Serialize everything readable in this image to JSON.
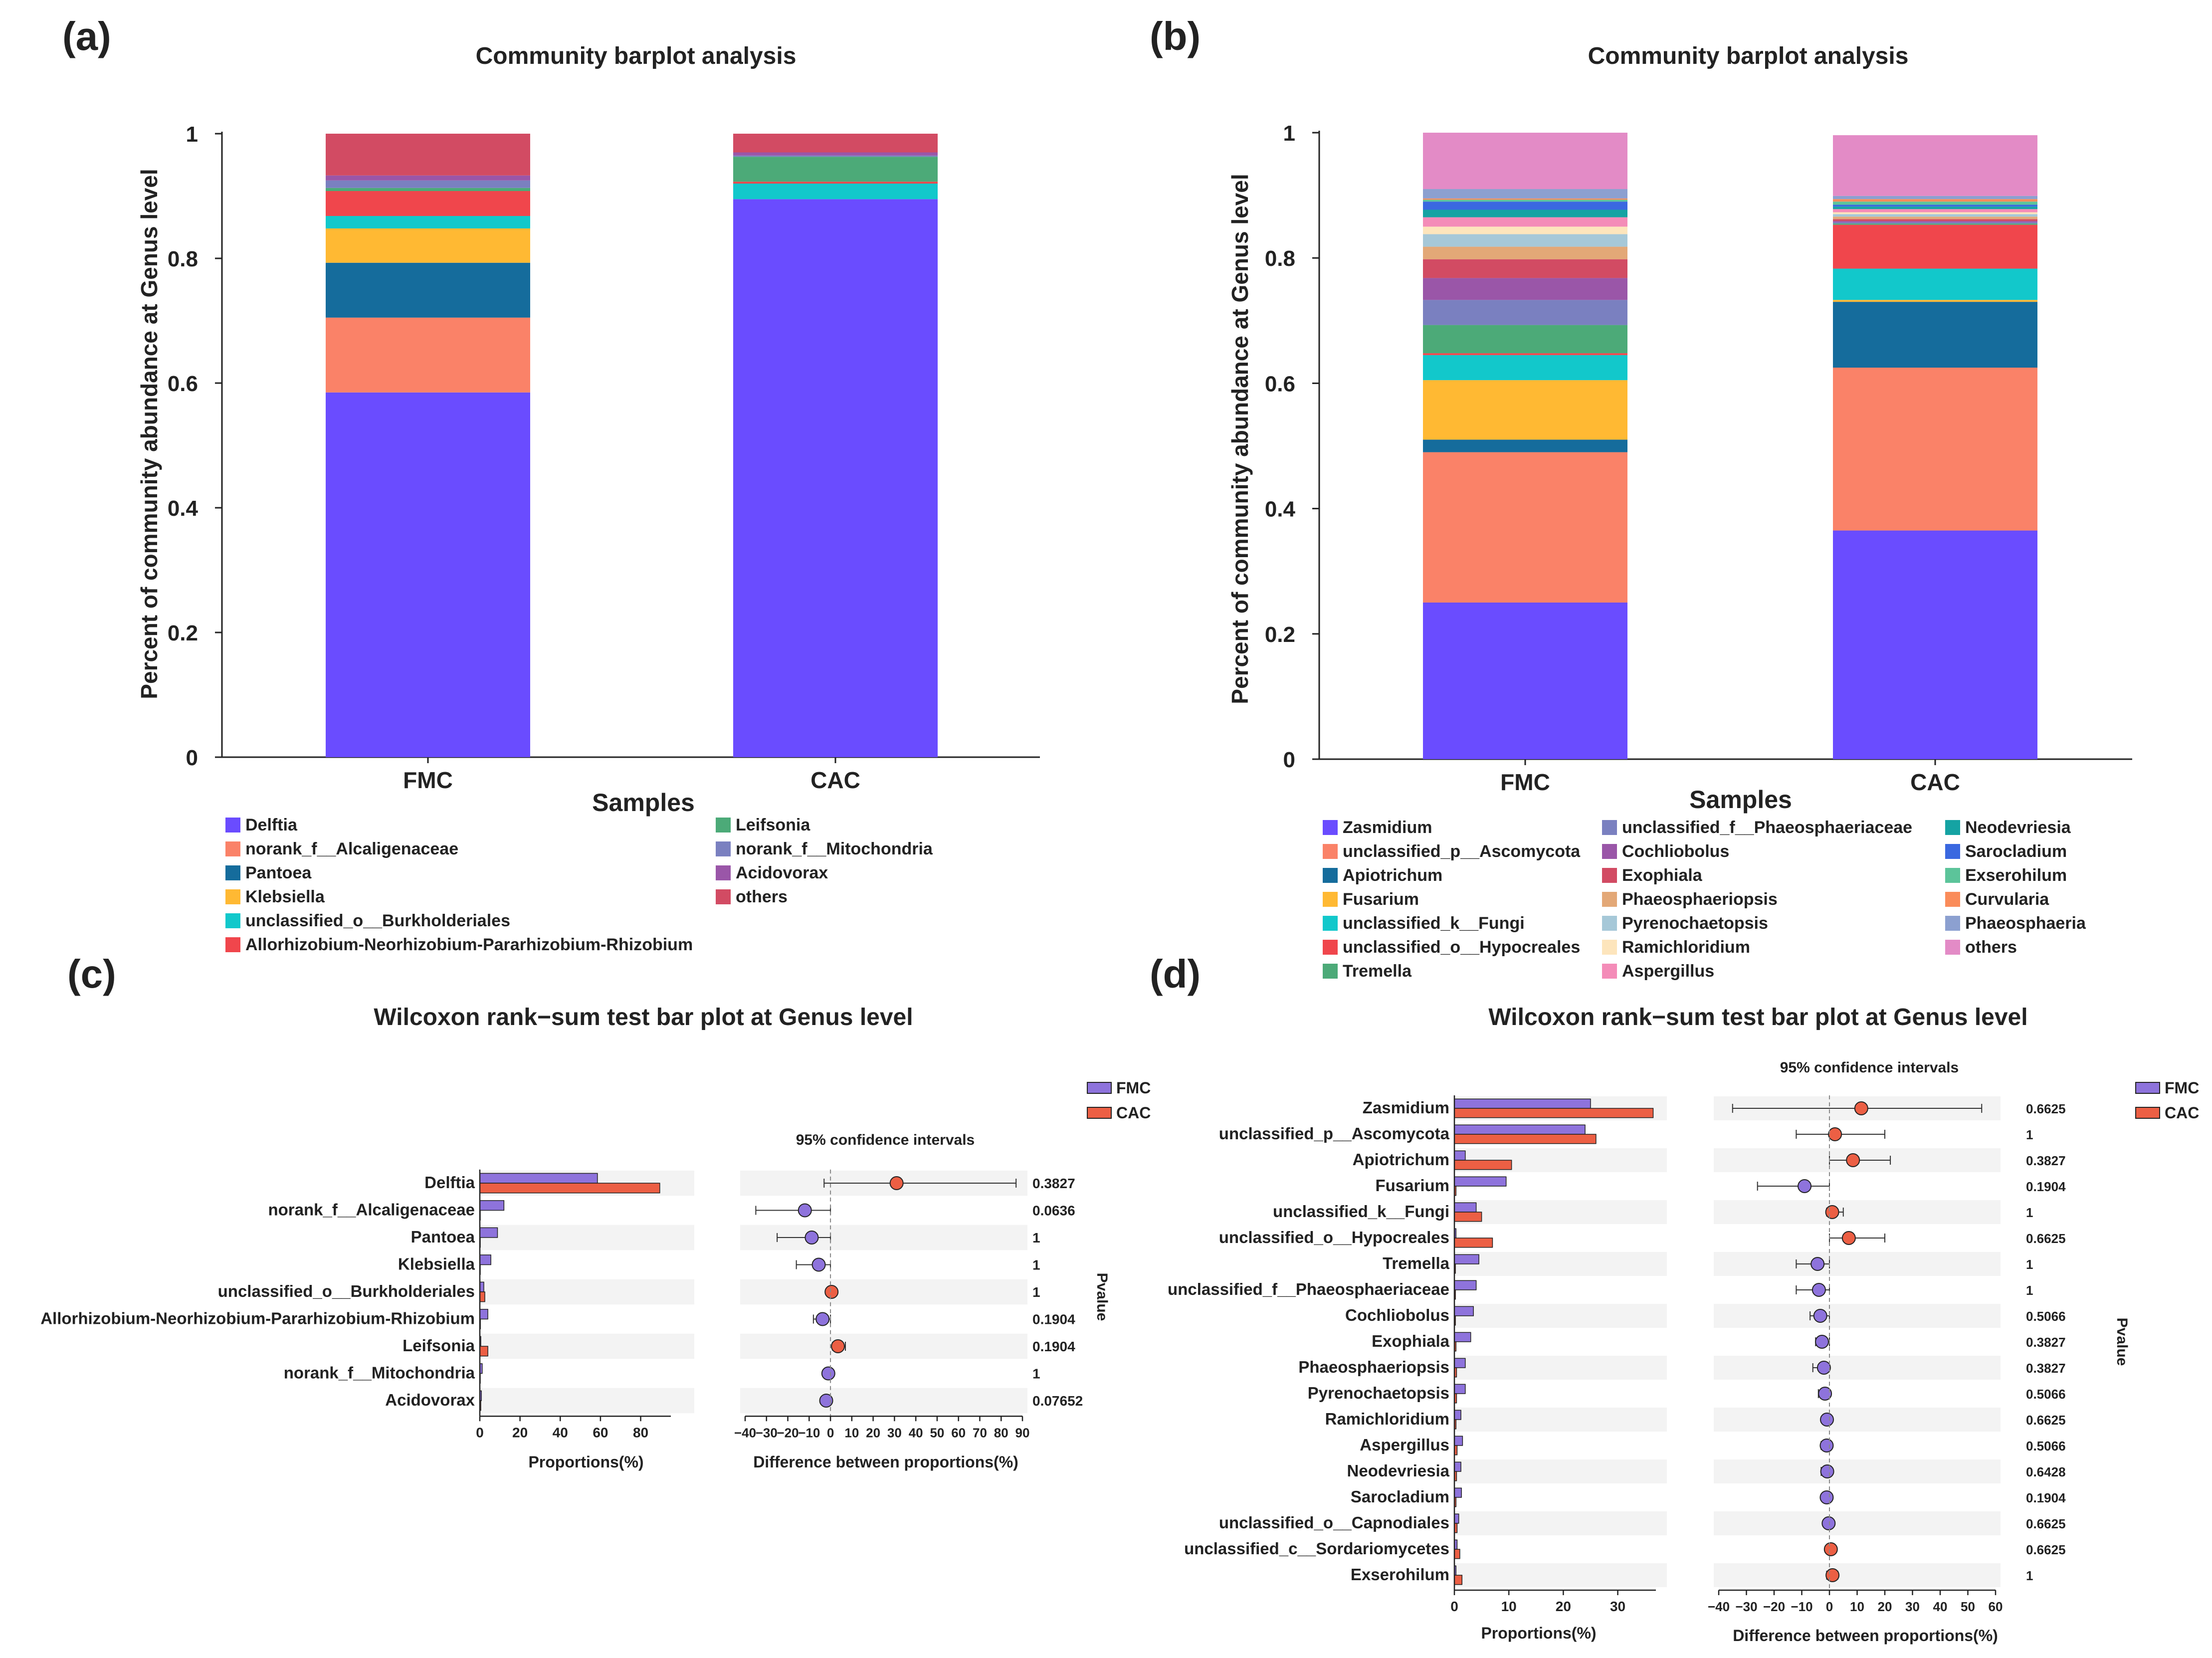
{
  "chart_data": [
    {
      "panel_label": "(a)",
      "type": "bar",
      "stacked": true,
      "title": "Community barplot analysis",
      "xlabel": "Samples",
      "ylabel": "Percent of community abundance at Genus level",
      "ylim": [
        0,
        1
      ],
      "yticks": [
        "0",
        "0.2",
        "0.4",
        "0.6",
        "0.8",
        "1"
      ],
      "categories": [
        "FMC",
        "CAC"
      ],
      "series": [
        {
          "name": "Delftia",
          "color": "#6a4cff",
          "values": [
            0.585,
            0.895
          ]
        },
        {
          "name": "norank_f__Alcaligenaceae",
          "color": "#fa8268",
          "values": [
            0.12,
            0.0
          ]
        },
        {
          "name": "Pantoea",
          "color": "#156c9c",
          "values": [
            0.088,
            0.0
          ]
        },
        {
          "name": "Klebsiella",
          "color": "#ffb933",
          "values": [
            0.055,
            0.0
          ]
        },
        {
          "name": "unclassified_o__Burkholderiales",
          "color": "#12c8cb",
          "values": [
            0.02,
            0.025
          ]
        },
        {
          "name": "Allorhizobium-Neorhizobium-Pararhizobium-Rhizobium",
          "color": "#f0464c",
          "values": [
            0.04,
            0.003
          ]
        },
        {
          "name": "Leifsonia",
          "color": "#4caa78",
          "values": [
            0.005,
            0.04
          ]
        },
        {
          "name": "norank_f__Mitochondria",
          "color": "#7a80c0",
          "values": [
            0.012,
            0.002
          ]
        },
        {
          "name": "Acidovorax",
          "color": "#9a56a8",
          "values": [
            0.008,
            0.005
          ]
        },
        {
          "name": "others",
          "color": "#d24b63",
          "values": [
            0.067,
            0.03
          ]
        }
      ]
    },
    {
      "panel_label": "(b)",
      "type": "bar",
      "stacked": true,
      "title": "Community barplot analysis",
      "xlabel": "Samples",
      "ylabel": "Percent of community abundance at Genus level",
      "ylim": [
        0,
        1
      ],
      "yticks": [
        "0",
        "0.2",
        "0.4",
        "0.6",
        "0.8",
        "1"
      ],
      "categories": [
        "FMC",
        "CAC"
      ],
      "series": [
        {
          "name": "Zasmidium",
          "color": "#6a4cff",
          "values": [
            0.25,
            0.365
          ]
        },
        {
          "name": "unclassified_p__Ascomycota",
          "color": "#fa8268",
          "values": [
            0.24,
            0.26
          ]
        },
        {
          "name": "Apiotrichum",
          "color": "#156c9c",
          "values": [
            0.02,
            0.105
          ]
        },
        {
          "name": "Fusarium",
          "color": "#ffb933",
          "values": [
            0.095,
            0.003
          ]
        },
        {
          "name": "unclassified_k__Fungi",
          "color": "#12c8cb",
          "values": [
            0.04,
            0.05
          ]
        },
        {
          "name": "unclassified_o__Hypocreales",
          "color": "#f0464c",
          "values": [
            0.003,
            0.07
          ]
        },
        {
          "name": "Tremella",
          "color": "#4caa78",
          "values": [
            0.045,
            0.002
          ]
        },
        {
          "name": "unclassified_f__Phaeosphaeriaceae",
          "color": "#7a80c0",
          "values": [
            0.04,
            0.002
          ]
        },
        {
          "name": "Cochliobolus",
          "color": "#9a56a8",
          "values": [
            0.035,
            0.002
          ]
        },
        {
          "name": "Exophiala",
          "color": "#d24b63",
          "values": [
            0.03,
            0.003
          ]
        },
        {
          "name": "Phaeosphaeriopsis",
          "color": "#e3a877",
          "values": [
            0.02,
            0.004
          ]
        },
        {
          "name": "Pyrenochaetopsis",
          "color": "#a6c8d8",
          "values": [
            0.02,
            0.004
          ]
        },
        {
          "name": "Ramichloridium",
          "color": "#fde5bc",
          "values": [
            0.012,
            0.003
          ]
        },
        {
          "name": "Aspergillus",
          "color": "#f48cb8",
          "values": [
            0.015,
            0.005
          ]
        },
        {
          "name": "Neodevriesia",
          "color": "#15a3a3",
          "values": [
            0.012,
            0.004
          ]
        },
        {
          "name": "Sarocladium",
          "color": "#3a68e0",
          "values": [
            0.013,
            0.003
          ]
        },
        {
          "name": "Exserohilum",
          "color": "#5cc49a",
          "values": [
            0.003,
            0.005
          ]
        },
        {
          "name": "Curvularia",
          "color": "#fa8c5a",
          "values": [
            0.002,
            0.004
          ]
        },
        {
          "name": "Phaeosphaeria",
          "color": "#8ca0d0",
          "values": [
            0.015,
            0.005
          ]
        },
        {
          "name": "others",
          "color": "#e38bc6",
          "values": [
            0.09,
            0.097
          ]
        }
      ]
    },
    {
      "panel_label": "(c)",
      "type": "bar",
      "title": "Wilcoxon rank−sum test bar plot at Genus level",
      "xlabel": "Proportions(%)",
      "ci_xlabel": "Difference between proportions(%)",
      "ci_title": "95% confidence intervals",
      "pvalue_label": "Pvalue",
      "xlim": [
        0,
        95
      ],
      "xticks": [
        "0",
        "20",
        "40",
        "60",
        "80"
      ],
      "ci_xlim": [
        -40,
        90
      ],
      "ci_xticks": [
        "−40",
        "−30",
        "−20",
        "−10",
        "0",
        "10",
        "20",
        "30",
        "40",
        "50",
        "60",
        "70",
        "80",
        "90"
      ],
      "legend": [
        {
          "name": "FMC",
          "color": "#8e73dc"
        },
        {
          "name": "CAC",
          "color": "#ec5f44"
        }
      ],
      "categories": [
        "Delftia",
        "norank_f__Alcaligenaceae",
        "Pantoea",
        "Klebsiella",
        "unclassified_o__Burkholderiales",
        "Allorhizobium-Neorhizobium-Pararhizobium-Rhizobium",
        "Leifsonia",
        "norank_f__Mitochondria",
        "Acidovorax"
      ],
      "series": [
        {
          "name": "FMC",
          "values": [
            58.5,
            12,
            8.8,
            5.5,
            2,
            4,
            0.5,
            1.2,
            0.8
          ]
        },
        {
          "name": "CAC",
          "values": [
            89.5,
            0,
            0,
            0,
            2.5,
            0.3,
            4,
            0.2,
            0.5
          ]
        }
      ],
      "ci_center": [
        31,
        -12,
        -8.8,
        -5.5,
        0.5,
        -3.7,
        3.5,
        -1,
        -2
      ],
      "ci_low": [
        -3,
        -35,
        -25,
        -16,
        -1,
        -8,
        1,
        -2,
        -3
      ],
      "ci_high": [
        87,
        0,
        0,
        0,
        2,
        0,
        7,
        0,
        0
      ],
      "pvalues": [
        "0.3827",
        "0.0636",
        "1",
        "1",
        "1",
        "0.1904",
        "0.1904",
        "1",
        "0.07652"
      ]
    },
    {
      "panel_label": "(d)",
      "type": "bar",
      "title": "Wilcoxon rank−sum test bar plot at Genus level",
      "xlabel": "Proportions(%)",
      "ci_xlabel": "Difference between proportions(%)",
      "ci_title": "95% confidence intervals",
      "pvalue_label": "Pvalue",
      "xlim": [
        0,
        37
      ],
      "xticks": [
        "0",
        "10",
        "20",
        "30"
      ],
      "ci_xlim": [
        -40,
        60
      ],
      "ci_xticks": [
        "−40",
        "−30",
        "−20",
        "−10",
        "0",
        "10",
        "20",
        "30",
        "40",
        "50",
        "60"
      ],
      "legend": [
        {
          "name": "FMC",
          "color": "#8e73dc"
        },
        {
          "name": "CAC",
          "color": "#ec5f44"
        }
      ],
      "categories": [
        "Zasmidium",
        "unclassified_p__Ascomycota",
        "Apiotrichum",
        "Fusarium",
        "unclassified_k__Fungi",
        "unclassified_o__Hypocreales",
        "Tremella",
        "unclassified_f__Phaeosphaeriaceae",
        "Cochliobolus",
        "Exophiala",
        "Phaeosphaeriopsis",
        "Pyrenochaetopsis",
        "Ramichloridium",
        "Aspergillus",
        "Neodevriesia",
        "Sarocladium",
        "unclassified_o__Capnodiales",
        "unclassified_c__Sordariomycetes",
        "Exserohilum"
      ],
      "series": [
        {
          "name": "FMC",
          "values": [
            25,
            24,
            2,
            9.5,
            4,
            0.3,
            4.5,
            4,
            3.5,
            3,
            2,
            2,
            1.2,
            1.5,
            1.2,
            1.3,
            0.8,
            0.5,
            0.3
          ]
        },
        {
          "name": "CAC",
          "values": [
            36.5,
            26,
            10.5,
            0.3,
            5,
            7,
            0.2,
            0.2,
            0.2,
            0.3,
            0.4,
            0.4,
            0.3,
            0.5,
            0.4,
            0.3,
            0.5,
            1,
            1.4
          ]
        }
      ],
      "ci_center": [
        11.5,
        2,
        8.5,
        -9,
        1,
        7,
        -4.3,
        -3.8,
        -3.3,
        -2.7,
        -2,
        -1.6,
        -0.9,
        -1,
        -0.8,
        -1,
        -0.3,
        0.5,
        1.1
      ],
      "ci_low": [
        -35,
        -12,
        0,
        -26,
        -1,
        0,
        -12,
        -12,
        -7,
        -5,
        -6,
        -4,
        -2,
        -3,
        -3,
        -2,
        -2,
        -1,
        -1
      ],
      "ci_high": [
        55,
        20,
        22,
        0,
        5,
        20,
        0,
        0,
        0,
        0,
        0,
        0,
        0,
        0,
        0,
        0,
        1,
        2,
        3
      ],
      "pvalues": [
        "0.6625",
        "1",
        "0.3827",
        "0.1904",
        "1",
        "0.6625",
        "1",
        "1",
        "0.5066",
        "0.3827",
        "0.3827",
        "0.5066",
        "0.6625",
        "0.5066",
        "0.6428",
        "0.1904",
        "0.6625",
        "0.6625",
        "1"
      ]
    }
  ]
}
